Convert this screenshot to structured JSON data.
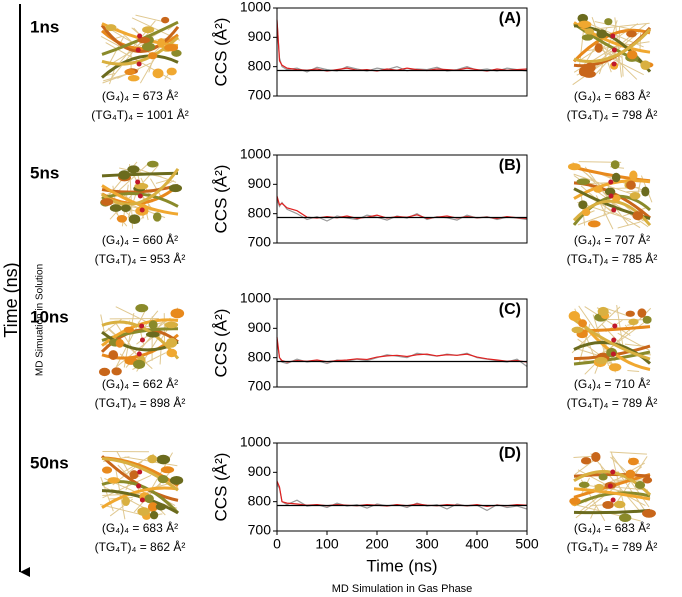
{
  "figure": {
    "y_axis_label": "Time (ns)",
    "y_axis_note": "MD Simuation in Solution",
    "x_axis_note": "MD Simulation in Gas Phase",
    "rows": [
      {
        "time": "1ns",
        "left": [
          "(G₄)₄ = 673 Å²",
          "(TG₄T)₄ = 1001 Å²"
        ],
        "right": [
          "(G₄)₄ = 683 Å²",
          "(TG₄T)₄ = 798 Å²"
        ]
      },
      {
        "time": "5ns",
        "left": [
          "(G₄)₄ = 660 Å²",
          "(TG₄T)₄ = 953 Å²"
        ],
        "right": [
          "(G₄)₄ = 707 Å²",
          "(TG₄T)₄ = 785 Å²"
        ]
      },
      {
        "time": "10ns",
        "left": [
          "(G₄)₄ = 662 Å²",
          "(TG₄T)₄ = 898 Å²"
        ],
        "right": [
          "(G₄)₄ = 710 Å²",
          "(TG₄T)₄ = 789 Å²"
        ]
      },
      {
        "time": "50ns",
        "left": [
          "(G₄)₄ = 683 Å²",
          "(TG₄T)₄ = 862 Å²"
        ],
        "right": [
          "(G₄)₄ = 683 Å²",
          "(TG₄T)₄ = 789 Å²"
        ]
      }
    ]
  },
  "chart_data": [
    {
      "type": "line",
      "title": "(A)",
      "ylabel": "CCS (Å²)",
      "x": [
        0,
        5,
        10,
        20,
        40,
        60,
        80,
        100,
        120,
        140,
        160,
        180,
        200,
        220,
        240,
        260,
        280,
        300,
        320,
        340,
        360,
        380,
        400,
        420,
        440,
        460,
        480,
        500
      ],
      "xlim": [
        0,
        500
      ],
      "ylim": [
        700,
        1000
      ],
      "yticks": [
        700,
        800,
        900,
        1000
      ],
      "hline": 787,
      "hline_color": "#000000",
      "series": [
        {
          "color": "#9a9a9a",
          "values": [
            955,
            830,
            800,
            790,
            795,
            782,
            798,
            790,
            785,
            800,
            792,
            785,
            795,
            790,
            800,
            786,
            792,
            790,
            798,
            785,
            790,
            800,
            788,
            792,
            785,
            795,
            790,
            785
          ]
        },
        {
          "color": "#e02020",
          "values": [
            960,
            820,
            805,
            795,
            790,
            788,
            792,
            785,
            790,
            795,
            788,
            790,
            785,
            792,
            788,
            795,
            790,
            787,
            792,
            790,
            788,
            795,
            790,
            785,
            792,
            788,
            790,
            792
          ]
        }
      ]
    },
    {
      "type": "line",
      "title": "(B)",
      "ylabel": "CCS (Å²)",
      "x": [
        0,
        5,
        10,
        20,
        40,
        60,
        80,
        100,
        120,
        140,
        160,
        180,
        200,
        220,
        240,
        260,
        280,
        300,
        320,
        340,
        360,
        380,
        400,
        420,
        440,
        460,
        480,
        500
      ],
      "xlim": [
        0,
        500
      ],
      "ylim": [
        700,
        1000
      ],
      "yticks": [
        700,
        800,
        900,
        1000
      ],
      "hline": 787,
      "hline_color": "#000000",
      "series": [
        {
          "color": "#9a9a9a",
          "values": [
            850,
            825,
            838,
            815,
            800,
            780,
            790,
            775,
            792,
            785,
            780,
            795,
            788,
            778,
            792,
            785,
            800,
            780,
            790,
            786,
            778,
            795,
            785,
            790,
            780,
            788,
            785,
            780
          ]
        },
        {
          "color": "#e02020",
          "values": [
            860,
            830,
            835,
            820,
            810,
            788,
            785,
            790,
            786,
            792,
            784,
            788,
            795,
            785,
            790,
            788,
            796,
            784,
            788,
            792,
            785,
            790,
            786,
            788,
            784,
            790,
            786,
            784
          ]
        }
      ]
    },
    {
      "type": "line",
      "title": "(C)",
      "ylabel": "CCS (Å²)",
      "x": [
        0,
        5,
        10,
        20,
        40,
        60,
        80,
        100,
        120,
        140,
        160,
        180,
        200,
        220,
        240,
        260,
        280,
        300,
        320,
        340,
        360,
        380,
        400,
        420,
        440,
        460,
        480,
        500
      ],
      "xlim": [
        0,
        500
      ],
      "ylim": [
        700,
        1000
      ],
      "yticks": [
        700,
        800,
        900,
        1000
      ],
      "hline": 787,
      "hline_color": "#000000",
      "series": [
        {
          "color": "#9a9a9a",
          "values": [
            860,
            800,
            785,
            780,
            795,
            785,
            790,
            780,
            792,
            788,
            795,
            790,
            800,
            810,
            805,
            800,
            815,
            810,
            805,
            812,
            808,
            815,
            800,
            795,
            790,
            785,
            795,
            770
          ]
        },
        {
          "color": "#e02020",
          "values": [
            870,
            800,
            790,
            785,
            790,
            788,
            792,
            786,
            790,
            792,
            796,
            794,
            802,
            806,
            808,
            804,
            810,
            812,
            806,
            810,
            808,
            812,
            802,
            796,
            792,
            788,
            790,
            785
          ]
        }
      ]
    },
    {
      "type": "line",
      "title": "(D)",
      "ylabel": "CCS (Å²)",
      "xlabel": "Time (ns)",
      "x": [
        0,
        5,
        10,
        20,
        40,
        60,
        80,
        100,
        120,
        140,
        160,
        180,
        200,
        220,
        240,
        260,
        280,
        300,
        320,
        340,
        360,
        380,
        400,
        420,
        440,
        460,
        480,
        500
      ],
      "xlim": [
        0,
        500
      ],
      "ylim": [
        700,
        1000
      ],
      "yticks": [
        700,
        800,
        900,
        1000
      ],
      "xticks": [
        0,
        100,
        200,
        300,
        400,
        500
      ],
      "hline": 787,
      "hline_color": "#000000",
      "series": [
        {
          "color": "#9a9a9a",
          "values": [
            860,
            845,
            800,
            790,
            805,
            785,
            790,
            780,
            795,
            785,
            790,
            778,
            792,
            786,
            790,
            780,
            795,
            785,
            790,
            775,
            792,
            785,
            788,
            770,
            790,
            780,
            785,
            775
          ]
        },
        {
          "color": "#e02020",
          "values": [
            870,
            850,
            800,
            795,
            792,
            788,
            790,
            786,
            790,
            788,
            786,
            790,
            788,
            785,
            790,
            786,
            792,
            788,
            786,
            790,
            788,
            786,
            790,
            784,
            788,
            786,
            790,
            788
          ]
        }
      ]
    }
  ]
}
